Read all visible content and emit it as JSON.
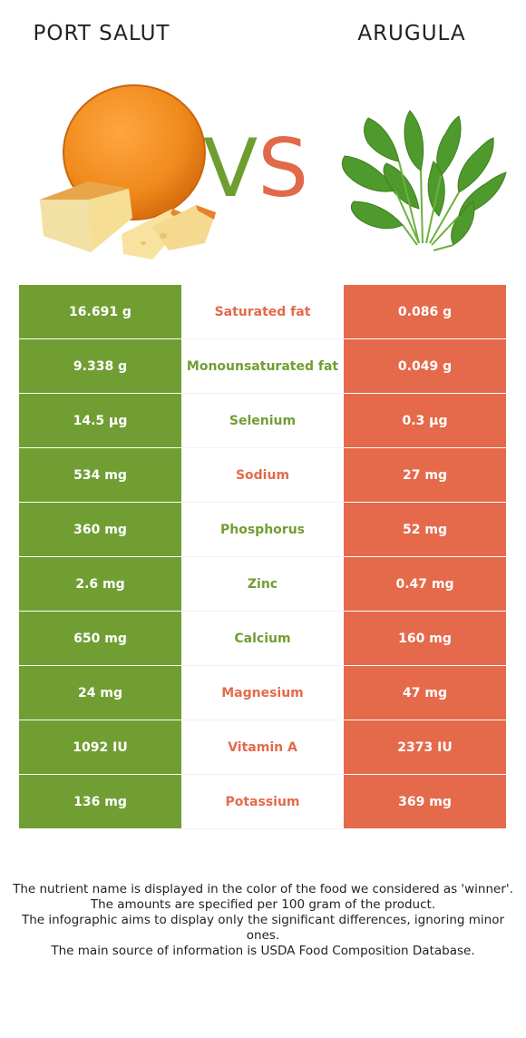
{
  "foods": {
    "left": {
      "name": "PORT SALUT",
      "color": "#719e33"
    },
    "right": {
      "name": "ARUGULA",
      "color": "#e46a4b"
    }
  },
  "vs": {
    "v": "V",
    "s": "S"
  },
  "rows": [
    {
      "left": "16.691 g",
      "nutrient": "Saturated fat",
      "right": "0.086 g",
      "winner": "right"
    },
    {
      "left": "9.338 g",
      "nutrient": "Monounsaturated fat",
      "right": "0.049 g",
      "winner": "left"
    },
    {
      "left": "14.5 µg",
      "nutrient": "Selenium",
      "right": "0.3 µg",
      "winner": "left"
    },
    {
      "left": "534 mg",
      "nutrient": "Sodium",
      "right": "27 mg",
      "winner": "right"
    },
    {
      "left": "360 mg",
      "nutrient": "Phosphorus",
      "right": "52 mg",
      "winner": "left"
    },
    {
      "left": "2.6 mg",
      "nutrient": "Zinc",
      "right": "0.47 mg",
      "winner": "left"
    },
    {
      "left": "650 mg",
      "nutrient": "Calcium",
      "right": "160 mg",
      "winner": "left"
    },
    {
      "left": "24 mg",
      "nutrient": "Magnesium",
      "right": "47 mg",
      "winner": "right"
    },
    {
      "left": "1092 IU",
      "nutrient": "Vitamin A",
      "right": "2373 IU",
      "winner": "right"
    },
    {
      "left": "136 mg",
      "nutrient": "Potassium",
      "right": "369 mg",
      "winner": "right"
    }
  ],
  "footnote": [
    "The nutrient name is displayed in the color of the food we considered as 'winner'.",
    "The amounts are specified per 100 gram of the product.",
    "The infographic aims to display only the significant differences, ignoring minor ones.",
    "The main source of information is USDA Food Composition Database."
  ]
}
